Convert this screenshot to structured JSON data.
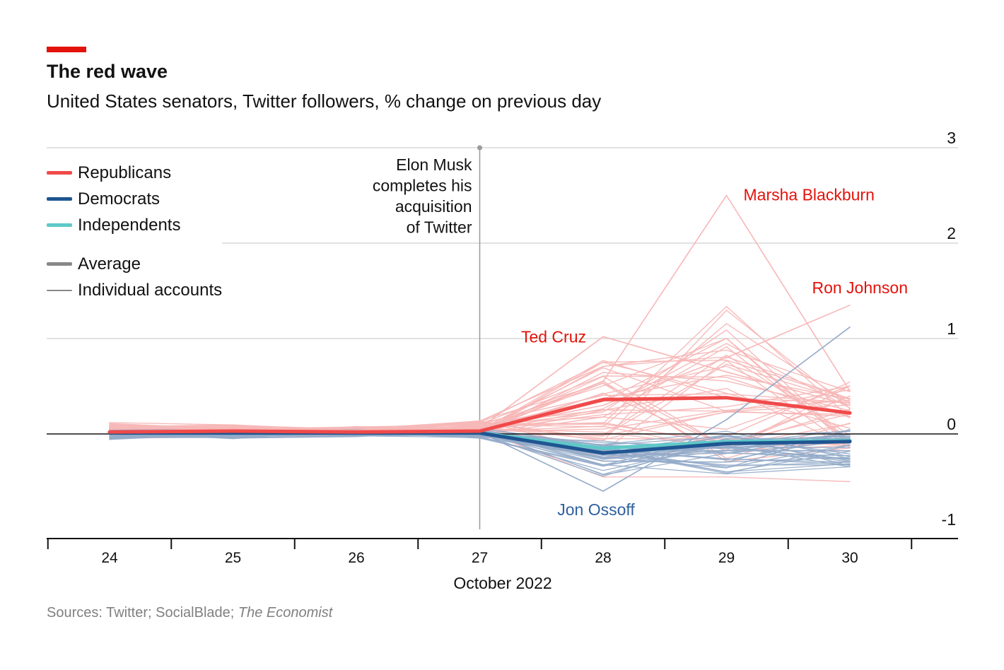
{
  "header": {
    "title": "The red wave",
    "subtitle": "United States senators, Twitter followers, % change on previous day"
  },
  "footer": {
    "source_prefix": "Sources: Twitter; SocialBlade; ",
    "source_italic": "The Economist"
  },
  "legend": {
    "items": [
      {
        "label": "Republicans",
        "color": "#f04a4a",
        "style": "thick"
      },
      {
        "label": "Democrats",
        "color": "#1f5591",
        "style": "thick"
      },
      {
        "label": "Independents",
        "color": "#5ec8c8",
        "style": "thick"
      },
      {
        "label": "Average",
        "color": "#888888",
        "style": "thick"
      },
      {
        "label": "Individual accounts",
        "color": "#888888",
        "style": "thin"
      }
    ]
  },
  "chart_data": {
    "type": "line",
    "title": "The red wave",
    "subtitle": "United States senators, Twitter followers, % change on previous day",
    "x": [
      24,
      25,
      26,
      27,
      28,
      29,
      30
    ],
    "x_tick_labels": [
      "24",
      "25",
      "26",
      "27",
      "28",
      "29",
      "30"
    ],
    "xlabel": "October 2022",
    "ylabel": "% change on previous day",
    "ylim": [
      -1,
      3
    ],
    "y_ticks": [
      3,
      2,
      1,
      0,
      -1
    ],
    "y_tick_labels": [
      "3",
      "2",
      "1",
      "0",
      "-1"
    ],
    "series": [
      {
        "name": "Republicans average",
        "party": "rep",
        "kind": "average",
        "values": [
          0.02,
          0.03,
          0.02,
          0.03,
          0.36,
          0.38,
          0.22
        ]
      },
      {
        "name": "Independents average",
        "party": "ind",
        "kind": "average",
        "values": [
          0.01,
          0.01,
          0.01,
          0.01,
          -0.15,
          -0.08,
          -0.07
        ]
      },
      {
        "name": "Democrats average",
        "party": "dem",
        "kind": "average",
        "values": [
          0.01,
          0.01,
          0.01,
          0.01,
          -0.2,
          -0.1,
          -0.08
        ]
      },
      {
        "name": "Marsha Blackburn",
        "party": "rep",
        "kind": "individual",
        "values": [
          0.05,
          0.06,
          0.04,
          0.05,
          0.55,
          2.5,
          0.45
        ]
      },
      {
        "name": "Ron Johnson",
        "party": "rep",
        "kind": "individual",
        "values": [
          0.03,
          0.05,
          0.04,
          0.05,
          0.3,
          0.8,
          1.35
        ]
      },
      {
        "name": "Ted Cruz",
        "party": "rep",
        "kind": "individual",
        "values": [
          0.06,
          0.05,
          0.04,
          0.06,
          1.02,
          0.65,
          0.3
        ]
      },
      {
        "name": "Jon Ossoff",
        "party": "dem",
        "kind": "individual",
        "values": [
          0.01,
          0.02,
          0.02,
          0.02,
          -0.6,
          0.15,
          1.12
        ]
      }
    ],
    "individual_reference": {
      "party_rep": "#f7b7b7",
      "party_dem": "#94abc9"
    },
    "annotations": [
      {
        "text": "Elon Musk completes his acquisition of Twitter",
        "lines": [
          "Elon Musk",
          "completes his",
          "acquisition",
          "of Twitter"
        ],
        "x": 27
      },
      {
        "text": "Marsha Blackburn",
        "x": 29,
        "y": 2.5
      },
      {
        "text": "Ron Johnson",
        "x": 30,
        "y": 1.35
      },
      {
        "text": "Ted Cruz",
        "x": 28,
        "y": 1.02
      },
      {
        "text": "Jon Ossoff",
        "x": 28,
        "y": -0.6
      }
    ]
  },
  "colors": {
    "rep": "#f04a4a",
    "rep_light": "#f7b7b7",
    "rep_label": "#e3120b",
    "dem": "#1f5591",
    "dem_light": "#94abc9",
    "dem_label": "#2e5f9e",
    "ind": "#5ec8c8",
    "grid": "#d9d9d9",
    "axis": "#121212",
    "annotation_line": "#9a9a9a",
    "brand_red": "#e3120b"
  }
}
